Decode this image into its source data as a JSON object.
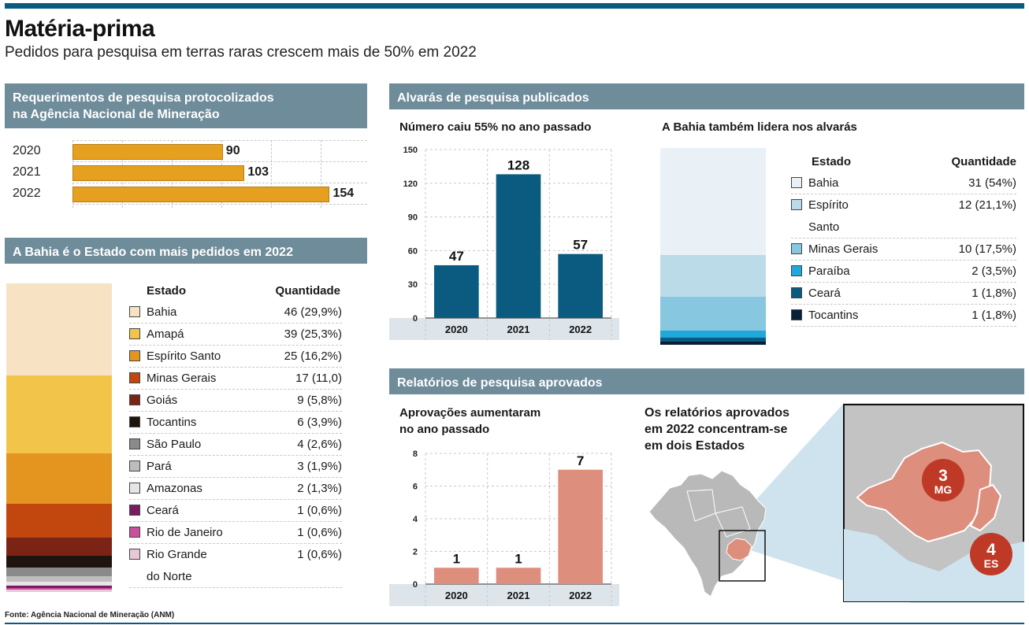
{
  "title": "Matéria-prima",
  "subtitle": "Pedidos para pesquisa em terras raras crescem mais de 50% em 2022",
  "source": "Fonte: Agência Nacional de Mineração (ANM)",
  "colors": {
    "accent": "#0b5a80",
    "section_bar": "#6e8c9a",
    "orange": "#e5a020",
    "teal": "#0b5a80",
    "salmon": "#dd8e7c",
    "axis_band": "#dde5ea"
  },
  "sections": {
    "requerimentos": "Requerimentos de pesquisa protocolizados\nna Agência Nacional de Mineração",
    "bahia_pedidos": "A Bahia é o Estado com mais pedidos em 2022",
    "alvaras": "Alvarás de pesquisa publicados",
    "relatorios": "Relatórios de pesquisa aprovados"
  },
  "table_headers": {
    "estado": "Estado",
    "quantidade": "Quantidade"
  },
  "chart_data": [
    {
      "id": "requerimentos",
      "type": "bar",
      "orientation": "horizontal",
      "title": "Requerimentos de pesquisa protocolizados na Agência Nacional de Mineração",
      "categories": [
        "2020",
        "2021",
        "2022"
      ],
      "values": [
        90,
        103,
        154
      ],
      "labels": [
        "90",
        "103",
        "154"
      ],
      "grid": true
    },
    {
      "id": "pedidos_por_estado_2022",
      "type": "bar",
      "stacked": true,
      "title": "A Bahia é o Estado com mais pedidos em 2022",
      "series": [
        {
          "name": "Bahia",
          "value": 46,
          "label": "46 (29,9%)",
          "color": "#f7e3c3"
        },
        {
          "name": "Amapá",
          "value": 39,
          "label": "39 (25,3%)",
          "color": "#f2c54a"
        },
        {
          "name": "Espírito Santo",
          "value": 25,
          "label": "25 (16,2%)",
          "color": "#e3951f"
        },
        {
          "name": "Minas Gerais",
          "value": 17,
          "label": "17 (11,0)",
          "color": "#c2470f"
        },
        {
          "name": "Goiás",
          "value": 9,
          "label": "9 (5,8%)",
          "color": "#7b2415"
        },
        {
          "name": "Tocantins",
          "value": 6,
          "label": "6 (3,9%)",
          "color": "#1e130d"
        },
        {
          "name": "São Paulo",
          "value": 4,
          "label": "4 (2,6%)",
          "color": "#8a8a8a"
        },
        {
          "name": "Pará",
          "value": 3,
          "label": "3 (1,9%)",
          "color": "#bdbdbd"
        },
        {
          "name": "Amazonas",
          "value": 2,
          "label": "2 (1,3%)",
          "color": "#e6e6e6"
        },
        {
          "name": "Ceará",
          "value": 1,
          "label": "1 (0,6%)",
          "color": "#7a1b62"
        },
        {
          "name": "Rio de Janeiro",
          "value": 1,
          "label": "1 (0,6%)",
          "color": "#c9509c"
        },
        {
          "name": "Rio Grande\ndo Norte",
          "value": 1,
          "label": "1 (0,6%)",
          "color": "#e8c8d6"
        }
      ]
    },
    {
      "id": "alvaras",
      "type": "bar",
      "title": "Número caiu 55% no ano passado",
      "categories": [
        "2020",
        "2021",
        "2022"
      ],
      "values": [
        47,
        128,
        57
      ],
      "ylim": [
        0,
        150
      ],
      "yticks": [
        0,
        30,
        60,
        90,
        120,
        150
      ],
      "grid": true
    },
    {
      "id": "alvaras_por_estado",
      "type": "bar",
      "stacked": true,
      "title": "A Bahia também lidera nos alvarás",
      "series": [
        {
          "name": "Bahia",
          "value": 31,
          "label": "31 (54%)",
          "color": "#e9f1f6"
        },
        {
          "name": "Espírito\nSanto",
          "value": 12,
          "label": "12 (21,1%)",
          "color": "#bcdbe8"
        },
        {
          "name": "Minas Gerais",
          "value": 10,
          "label": "10 (17,5%)",
          "color": "#87c7e0"
        },
        {
          "name": "Paraíba",
          "value": 2,
          "label": "2 (3,5%)",
          "color": "#1ea8dc"
        },
        {
          "name": "Ceará",
          "value": 1,
          "label": "1 (1,8%)",
          "color": "#0b5a80"
        },
        {
          "name": "Tocantins",
          "value": 1,
          "label": "1 (1,8%)",
          "color": "#06203a"
        }
      ]
    },
    {
      "id": "relatorios",
      "type": "bar",
      "title": "Aprovações aumentaram\nno ano passado",
      "categories": [
        "2020",
        "2021",
        "2022"
      ],
      "values": [
        1,
        1,
        7
      ],
      "ylim": [
        0,
        8
      ],
      "yticks": [
        0,
        2,
        4,
        6,
        8
      ],
      "grid": true
    }
  ],
  "map": {
    "title": "Os relatórios aprovados\nem 2022 concentram-se\nem dois Estados",
    "states": [
      {
        "count": "3",
        "abbr": "MG"
      },
      {
        "count": "4",
        "abbr": "ES"
      }
    ]
  }
}
